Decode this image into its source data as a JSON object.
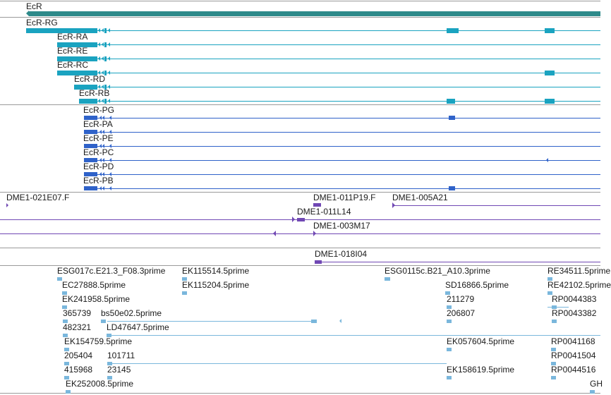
{
  "colors": {
    "gene": "#2e8a8a",
    "transcript": "#1aa3c0",
    "protein": "#2f62c9",
    "clone": "#7048b4",
    "est": "#7ab7dc",
    "separator": "#9a9a9a"
  },
  "gene_track": {
    "label": "EcR"
  },
  "transcript_track": {
    "items": [
      {
        "label": "EcR-RG"
      },
      {
        "label": "EcR-RA"
      },
      {
        "label": "EcR-RE"
      },
      {
        "label": "EcR-RC"
      },
      {
        "label": "EcR-RD"
      },
      {
        "label": "EcR-RB"
      }
    ]
  },
  "protein_track": {
    "items": [
      {
        "label": "EcR-PG"
      },
      {
        "label": "EcR-PA"
      },
      {
        "label": "EcR-PE"
      },
      {
        "label": "EcR-PC"
      },
      {
        "label": "EcR-PD"
      },
      {
        "label": "EcR-PB"
      }
    ]
  },
  "clone_track": {
    "items": [
      {
        "label": "DME1-021E07.F"
      },
      {
        "label": "DME1-011P19.F"
      },
      {
        "label": "DME1-005A21"
      },
      {
        "label": "DME1-011L14"
      },
      {
        "label": "DME1-003M17"
      },
      {
        "label": "DME1-018I04"
      }
    ]
  },
  "est_track": {
    "items": [
      {
        "label": "ESG017c.E21.3_F08.3prime"
      },
      {
        "label": "EK115514.5prime"
      },
      {
        "label": "ESG0115c.B21_A10.3prime"
      },
      {
        "label": "RE34511.5prime"
      },
      {
        "label": "EC27888.5prime"
      },
      {
        "label": "EK115204.5prime"
      },
      {
        "label": "SD16866.5prime"
      },
      {
        "label": "RE42102.5prime"
      },
      {
        "label": "EK241958.5prime"
      },
      {
        "label": "211279"
      },
      {
        "label": "RP0044383"
      },
      {
        "label": "365739"
      },
      {
        "label": "bs50e02.5prime"
      },
      {
        "label": "206807"
      },
      {
        "label": "RP0043382"
      },
      {
        "label": "482321"
      },
      {
        "label": "LD47647.5prime"
      },
      {
        "label": "EK154759.5prime"
      },
      {
        "label": "EK057604.5prime"
      },
      {
        "label": "RP0041168"
      },
      {
        "label": "205404"
      },
      {
        "label": "101711"
      },
      {
        "label": "RP0041504"
      },
      {
        "label": "415968"
      },
      {
        "label": "23145"
      },
      {
        "label": "EK158619.5prime"
      },
      {
        "label": "RP0044516"
      },
      {
        "label": "EK252008.5prime"
      },
      {
        "label": "GH"
      }
    ]
  }
}
